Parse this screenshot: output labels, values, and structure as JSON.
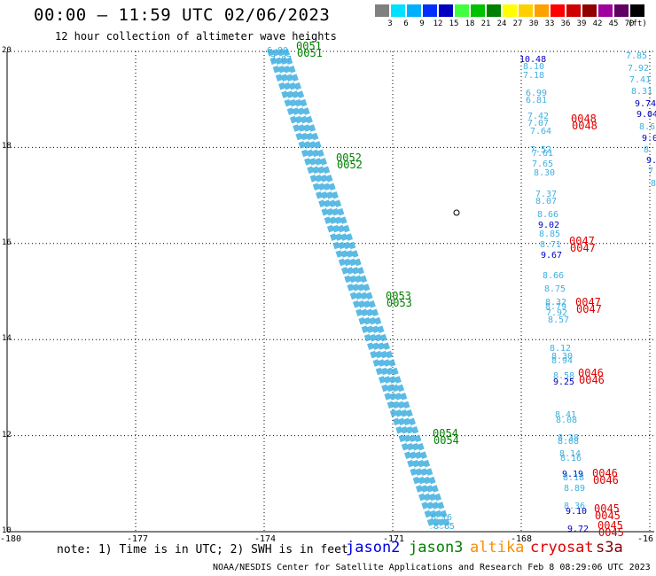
{
  "header": {
    "title": "00:00 – 11:59 UTC 02/06/2023",
    "subtitle": "12 hour collection of altimeter wave heights"
  },
  "legend": {
    "unit": "(ft)",
    "items": [
      {
        "label": "",
        "color": "#808080"
      },
      {
        "label": "3",
        "color": "#00e0ff"
      },
      {
        "label": "6",
        "color": "#00b0ff"
      },
      {
        "label": "9",
        "color": "#0030ff"
      },
      {
        "label": "12",
        "color": "#0000c0"
      },
      {
        "label": "15",
        "color": "#40ff40"
      },
      {
        "label": "18",
        "color": "#00c000"
      },
      {
        "label": "21",
        "color": "#008000"
      },
      {
        "label": "24",
        "color": "#ffff00"
      },
      {
        "label": "27",
        "color": "#ffd000"
      },
      {
        "label": "30",
        "color": "#ffa000"
      },
      {
        "label": "33",
        "color": "#ff0000"
      },
      {
        "label": "36",
        "color": "#d00000"
      },
      {
        "label": "39",
        "color": "#900000"
      },
      {
        "label": "42",
        "color": "#a000a0"
      },
      {
        "label": "45",
        "color": "#600060"
      },
      {
        "label": "70",
        "color": "#000000"
      }
    ]
  },
  "map": {
    "lat_labels": [
      "20",
      "18",
      "16",
      "14",
      "12",
      "10"
    ],
    "lon_labels": [
      "-180",
      "-177",
      "-174",
      "-171",
      "-168",
      "-16"
    ],
    "track_color": "#40b0e0",
    "markers": [
      {
        "text": "0051",
        "color": "#008000"
      },
      {
        "text": "0052",
        "color": "#008000"
      },
      {
        "text": "0053",
        "color": "#008000"
      },
      {
        "text": "0054",
        "color": "#008000"
      },
      {
        "text": "0048",
        "color": "#e00000"
      },
      {
        "text": "0047",
        "color": "#e00000"
      },
      {
        "text": "0047",
        "color": "#e00000"
      },
      {
        "text": "0046",
        "color": "#e00000"
      },
      {
        "text": "0046",
        "color": "#e00000"
      },
      {
        "text": "0045",
        "color": "#e00000"
      },
      {
        "text": "0045",
        "color": "#e00000"
      }
    ],
    "track_top_values": [
      "6.80",
      "7.07"
    ],
    "track_bottom_values": [
      "8.16",
      "8.65"
    ],
    "s3a_values": [
      {
        "v": "10.48",
        "c": "#0000c0"
      },
      {
        "v": "8.10",
        "c": "#40b0e0"
      },
      {
        "v": "7.18",
        "c": "#40b0e0"
      },
      {
        "v": "6.99",
        "c": "#40b0e0"
      },
      {
        "v": "6.81",
        "c": "#40b0e0"
      },
      {
        "v": "7.42",
        "c": "#40b0e0"
      },
      {
        "v": "7.07",
        "c": "#40b0e0"
      },
      {
        "v": "7.64",
        "c": "#40b0e0"
      },
      {
        "v": "7.52",
        "c": "#40b0e0"
      },
      {
        "v": "7.61",
        "c": "#40b0e0"
      },
      {
        "v": "7.65",
        "c": "#40b0e0"
      },
      {
        "v": "8.30",
        "c": "#40b0e0"
      },
      {
        "v": "7.37",
        "c": "#40b0e0"
      },
      {
        "v": "8.07",
        "c": "#40b0e0"
      },
      {
        "v": "8.66",
        "c": "#40b0e0"
      },
      {
        "v": "9.02",
        "c": "#0000c0"
      },
      {
        "v": "8.85",
        "c": "#40b0e0"
      },
      {
        "v": "8.71",
        "c": "#40b0e0"
      },
      {
        "v": "9.67",
        "c": "#0000c0"
      },
      {
        "v": "8.66",
        "c": "#40b0e0"
      },
      {
        "v": "8.75",
        "c": "#40b0e0"
      },
      {
        "v": "8.32",
        "c": "#40b0e0"
      },
      {
        "v": "8.79",
        "c": "#40b0e0"
      },
      {
        "v": "7.92",
        "c": "#40b0e0"
      },
      {
        "v": "8.57",
        "c": "#40b0e0"
      },
      {
        "v": "8.12",
        "c": "#40b0e0"
      },
      {
        "v": "8.30",
        "c": "#40b0e0"
      },
      {
        "v": "8.94",
        "c": "#40b0e0"
      },
      {
        "v": "8.58",
        "c": "#40b0e0"
      },
      {
        "v": "9.25",
        "c": "#0000c0"
      },
      {
        "v": "8.41",
        "c": "#40b0e0"
      },
      {
        "v": "8.08",
        "c": "#40b0e0"
      },
      {
        "v": "8.38",
        "c": "#40b0e0"
      },
      {
        "v": "8.08",
        "c": "#40b0e0"
      },
      {
        "v": "8.14",
        "c": "#40b0e0"
      },
      {
        "v": "8.16",
        "c": "#40b0e0"
      },
      {
        "v": "9.19",
        "c": "#0000c0"
      },
      {
        "v": "8.18",
        "c": "#40b0e0"
      },
      {
        "v": "8.89",
        "c": "#40b0e0"
      },
      {
        "v": "8.36",
        "c": "#40b0e0"
      },
      {
        "v": "9.10",
        "c": "#0000c0"
      },
      {
        "v": "9.72",
        "c": "#0000c0"
      }
    ],
    "right_values": [
      {
        "v": "7.85",
        "c": "#40b0e0"
      },
      {
        "v": "7.92",
        "c": "#40b0e0"
      },
      {
        "v": "7.41",
        "c": "#40b0e0"
      },
      {
        "v": "8.31",
        "c": "#40b0e0"
      },
      {
        "v": "9.74",
        "c": "#0000c0"
      },
      {
        "v": "9.04",
        "c": "#0000c0"
      },
      {
        "v": "8.6",
        "c": "#40b0e0"
      },
      {
        "v": "9.0",
        "c": "#0000c0"
      },
      {
        "v": "8",
        "c": "#40b0e0"
      },
      {
        "v": "9.",
        "c": "#0000c0"
      },
      {
        "v": "7",
        "c": "#40b0e0"
      },
      {
        "v": "8",
        "c": "#40b0e0"
      }
    ]
  },
  "footer": {
    "note": "note: 1) Time is in UTC; 2) SWH is in feet",
    "satellites": [
      {
        "name": "jason2",
        "color": "#0000e0"
      },
      {
        "name": "jason3",
        "color": "#008000"
      },
      {
        "name": "altika",
        "color": "#ff8c00"
      },
      {
        "name": "cryosat",
        "color": "#e00000"
      },
      {
        "name": "s3a",
        "color": "#800000"
      }
    ],
    "credit": "NOAA/NESDIS Center for Satellite Applications and Research   Feb  8 08:29:06 UTC 2023"
  }
}
